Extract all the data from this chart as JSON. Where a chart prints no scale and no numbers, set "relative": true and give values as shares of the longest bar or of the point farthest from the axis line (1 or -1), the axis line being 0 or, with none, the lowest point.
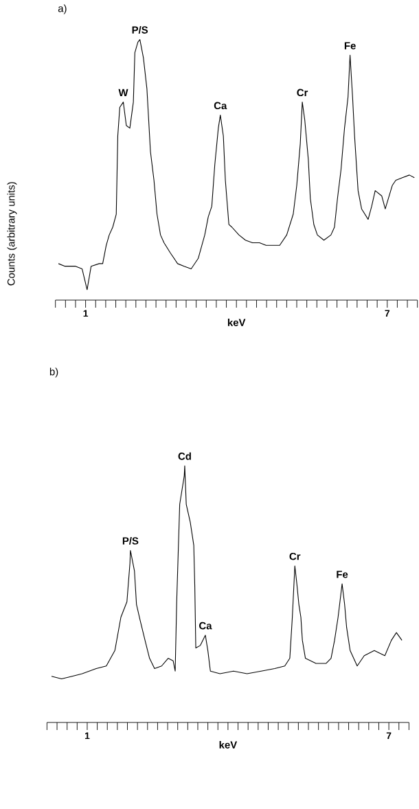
{
  "chart_data": [
    {
      "type": "line",
      "title": "a)",
      "xlabel": "keV",
      "ylabel": "Counts (arbitrary units)",
      "relative": true,
      "color": "#000000",
      "marker": "none",
      "line_style": "solid",
      "x": [
        0.46,
        0.59,
        0.8,
        0.93,
        1.03,
        1.11,
        1.27,
        1.34,
        1.41,
        1.47,
        1.54,
        1.61,
        1.64,
        1.68,
        1.75,
        1.81,
        1.88,
        1.95,
        1.98,
        2.04,
        2.08,
        2.15,
        2.22,
        2.29,
        2.36,
        2.42,
        2.49,
        2.56,
        2.69,
        2.83,
        2.96,
        3.1,
        3.24,
        3.37,
        3.44,
        3.51,
        3.57,
        3.64,
        3.68,
        3.74,
        3.78,
        3.85,
        3.91,
        4.05,
        4.18,
        4.32,
        4.46,
        4.59,
        4.73,
        4.86,
        5.0,
        5.13,
        5.2,
        5.27,
        5.31,
        5.36,
        5.43,
        5.47,
        5.54,
        5.61,
        5.74,
        5.88,
        5.95,
        6.01,
        6.08,
        6.15,
        6.22,
        6.26,
        6.31,
        6.35,
        6.42,
        6.49,
        6.62,
        6.69,
        6.76,
        6.89,
        6.96,
        7.1,
        7.17,
        7.3,
        7.44,
        7.54
      ],
      "values": [
        0.14,
        0.13,
        0.13,
        0.12,
        0.04,
        0.13,
        0.14,
        0.14,
        0.21,
        0.25,
        0.28,
        0.33,
        0.63,
        0.74,
        0.76,
        0.67,
        0.66,
        0.76,
        0.95,
        0.99,
        1.0,
        0.93,
        0.81,
        0.57,
        0.46,
        0.33,
        0.25,
        0.22,
        0.18,
        0.14,
        0.13,
        0.12,
        0.16,
        0.25,
        0.32,
        0.36,
        0.52,
        0.66,
        0.71,
        0.63,
        0.46,
        0.29,
        0.28,
        0.25,
        0.23,
        0.22,
        0.22,
        0.21,
        0.21,
        0.21,
        0.25,
        0.33,
        0.44,
        0.6,
        0.76,
        0.69,
        0.54,
        0.39,
        0.29,
        0.25,
        0.23,
        0.25,
        0.28,
        0.39,
        0.5,
        0.66,
        0.78,
        0.94,
        0.78,
        0.63,
        0.42,
        0.35,
        0.31,
        0.36,
        0.42,
        0.4,
        0.35,
        0.44,
        0.46,
        0.47,
        0.48,
        0.47
      ],
      "xlim": [
        0.4,
        7.6
      ],
      "xticks": [
        1,
        7
      ],
      "annotations": [
        {
          "text": "W",
          "x": 1.75,
          "y": 0.76
        },
        {
          "text": "P/S",
          "x": 2.08,
          "y": 1.0
        },
        {
          "text": "Ca",
          "x": 3.68,
          "y": 0.71
        },
        {
          "text": "Cr",
          "x": 5.31,
          "y": 0.76
        },
        {
          "text": "Fe",
          "x": 6.26,
          "y": 0.94
        }
      ]
    },
    {
      "type": "line",
      "title": "b)",
      "xlabel": "keV",
      "relative": true,
      "color": "#000000",
      "marker": "none",
      "line_style": "solid",
      "x": [
        0.29,
        0.49,
        0.7,
        0.9,
        1.18,
        1.38,
        1.55,
        1.67,
        1.79,
        1.85,
        1.86,
        1.94,
        1.98,
        2.05,
        2.15,
        2.24,
        2.34,
        2.48,
        2.61,
        2.71,
        2.75,
        2.78,
        2.84,
        2.93,
        2.94,
        2.97,
        3.05,
        3.12,
        3.14,
        3.16,
        3.25,
        3.35,
        3.4,
        3.45,
        3.64,
        3.91,
        4.18,
        4.46,
        4.73,
        4.93,
        5.03,
        5.08,
        5.13,
        5.17,
        5.21,
        5.25,
        5.28,
        5.34,
        5.55,
        5.75,
        5.85,
        5.92,
        5.99,
        6.07,
        6.12,
        6.16,
        6.23,
        6.3,
        6.37,
        6.51,
        6.71,
        6.92,
        7.05,
        7.15,
        7.26
      ],
      "values": [
        0.18,
        0.17,
        0.18,
        0.19,
        0.21,
        0.22,
        0.28,
        0.41,
        0.47,
        0.62,
        0.67,
        0.59,
        0.46,
        0.4,
        0.32,
        0.25,
        0.21,
        0.22,
        0.25,
        0.24,
        0.2,
        0.47,
        0.85,
        0.96,
        1.0,
        0.85,
        0.78,
        0.69,
        0.53,
        0.29,
        0.3,
        0.34,
        0.28,
        0.2,
        0.19,
        0.2,
        0.19,
        0.2,
        0.21,
        0.22,
        0.25,
        0.41,
        0.61,
        0.54,
        0.46,
        0.41,
        0.32,
        0.25,
        0.23,
        0.23,
        0.25,
        0.32,
        0.41,
        0.54,
        0.46,
        0.37,
        0.28,
        0.25,
        0.22,
        0.26,
        0.28,
        0.26,
        0.32,
        0.35,
        0.32
      ],
      "xlim": [
        0.2,
        7.4
      ],
      "xticks": [
        1,
        7
      ],
      "annotations": [
        {
          "text": "P/S",
          "x": 1.86,
          "y": 0.67
        },
        {
          "text": "Cd",
          "x": 2.94,
          "y": 1.0
        },
        {
          "text": "Ca",
          "x": 3.35,
          "y": 0.34
        },
        {
          "text": "Cr",
          "x": 5.13,
          "y": 0.61
        },
        {
          "text": "Fe",
          "x": 6.07,
          "y": 0.54
        }
      ]
    }
  ]
}
